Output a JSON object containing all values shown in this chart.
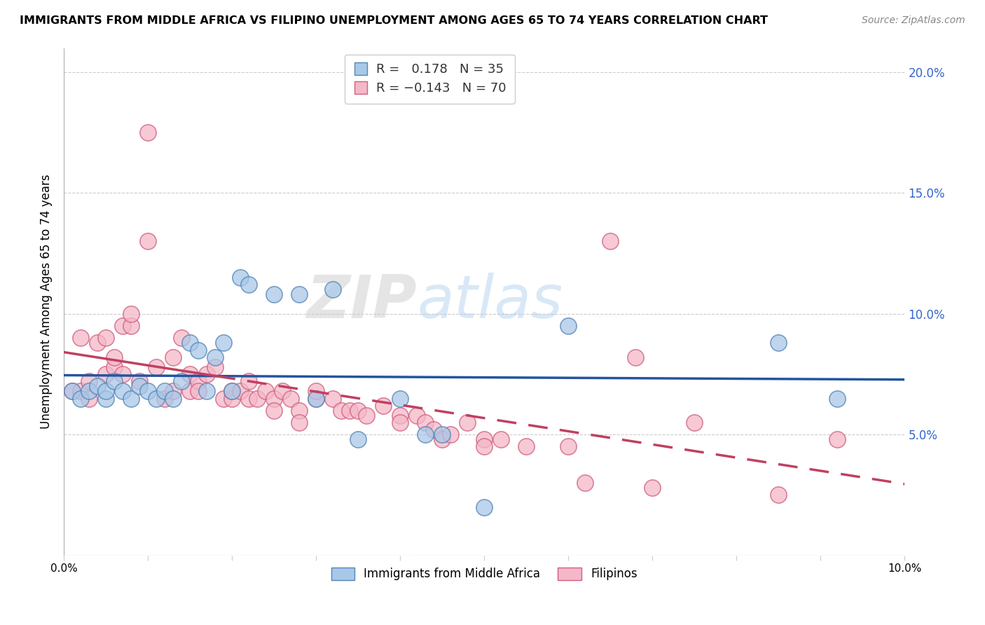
{
  "title": "IMMIGRANTS FROM MIDDLE AFRICA VS FILIPINO UNEMPLOYMENT AMONG AGES 65 TO 74 YEARS CORRELATION CHART",
  "source": "Source: ZipAtlas.com",
  "ylabel": "Unemployment Among Ages 65 to 74 years",
  "legend_labels": [
    "Immigrants from Middle Africa",
    "Filipinos"
  ],
  "blue_R": "0.178",
  "blue_N": "35",
  "pink_R": "-0.143",
  "pink_N": "70",
  "blue_color": "#a8c8e8",
  "pink_color": "#f4b8c8",
  "blue_edge_color": "#5585b5",
  "pink_edge_color": "#d06080",
  "blue_line_color": "#2255a0",
  "pink_line_color": "#c04060",
  "watermark": "ZIPatlas",
  "blue_points": [
    [
      0.001,
      0.068
    ],
    [
      0.002,
      0.065
    ],
    [
      0.003,
      0.068
    ],
    [
      0.004,
      0.07
    ],
    [
      0.005,
      0.065
    ],
    [
      0.005,
      0.068
    ],
    [
      0.006,
      0.072
    ],
    [
      0.007,
      0.068
    ],
    [
      0.008,
      0.065
    ],
    [
      0.009,
      0.07
    ],
    [
      0.01,
      0.068
    ],
    [
      0.011,
      0.065
    ],
    [
      0.012,
      0.068
    ],
    [
      0.013,
      0.065
    ],
    [
      0.014,
      0.072
    ],
    [
      0.015,
      0.088
    ],
    [
      0.016,
      0.085
    ],
    [
      0.017,
      0.068
    ],
    [
      0.018,
      0.082
    ],
    [
      0.019,
      0.088
    ],
    [
      0.02,
      0.068
    ],
    [
      0.021,
      0.115
    ],
    [
      0.022,
      0.112
    ],
    [
      0.025,
      0.108
    ],
    [
      0.028,
      0.108
    ],
    [
      0.03,
      0.065
    ],
    [
      0.032,
      0.11
    ],
    [
      0.035,
      0.048
    ],
    [
      0.04,
      0.065
    ],
    [
      0.043,
      0.05
    ],
    [
      0.045,
      0.05
    ],
    [
      0.05,
      0.02
    ],
    [
      0.06,
      0.095
    ],
    [
      0.085,
      0.088
    ],
    [
      0.092,
      0.065
    ]
  ],
  "pink_points": [
    [
      0.001,
      0.068
    ],
    [
      0.002,
      0.068
    ],
    [
      0.002,
      0.09
    ],
    [
      0.003,
      0.072
    ],
    [
      0.003,
      0.065
    ],
    [
      0.004,
      0.088
    ],
    [
      0.005,
      0.09
    ],
    [
      0.005,
      0.075
    ],
    [
      0.006,
      0.078
    ],
    [
      0.006,
      0.082
    ],
    [
      0.007,
      0.095
    ],
    [
      0.007,
      0.075
    ],
    [
      0.008,
      0.095
    ],
    [
      0.008,
      0.1
    ],
    [
      0.009,
      0.072
    ],
    [
      0.01,
      0.13
    ],
    [
      0.01,
      0.175
    ],
    [
      0.011,
      0.078
    ],
    [
      0.012,
      0.065
    ],
    [
      0.013,
      0.082
    ],
    [
      0.013,
      0.068
    ],
    [
      0.014,
      0.09
    ],
    [
      0.015,
      0.075
    ],
    [
      0.015,
      0.068
    ],
    [
      0.016,
      0.072
    ],
    [
      0.016,
      0.068
    ],
    [
      0.017,
      0.075
    ],
    [
      0.018,
      0.078
    ],
    [
      0.019,
      0.065
    ],
    [
      0.02,
      0.065
    ],
    [
      0.02,
      0.068
    ],
    [
      0.021,
      0.068
    ],
    [
      0.022,
      0.065
    ],
    [
      0.022,
      0.072
    ],
    [
      0.023,
      0.065
    ],
    [
      0.024,
      0.068
    ],
    [
      0.025,
      0.065
    ],
    [
      0.025,
      0.06
    ],
    [
      0.026,
      0.068
    ],
    [
      0.027,
      0.065
    ],
    [
      0.028,
      0.06
    ],
    [
      0.028,
      0.055
    ],
    [
      0.03,
      0.065
    ],
    [
      0.03,
      0.068
    ],
    [
      0.032,
      0.065
    ],
    [
      0.033,
      0.06
    ],
    [
      0.034,
      0.06
    ],
    [
      0.035,
      0.06
    ],
    [
      0.036,
      0.058
    ],
    [
      0.038,
      0.062
    ],
    [
      0.04,
      0.058
    ],
    [
      0.04,
      0.055
    ],
    [
      0.042,
      0.058
    ],
    [
      0.043,
      0.055
    ],
    [
      0.044,
      0.052
    ],
    [
      0.045,
      0.048
    ],
    [
      0.046,
      0.05
    ],
    [
      0.048,
      0.055
    ],
    [
      0.05,
      0.048
    ],
    [
      0.05,
      0.045
    ],
    [
      0.052,
      0.048
    ],
    [
      0.055,
      0.045
    ],
    [
      0.06,
      0.045
    ],
    [
      0.062,
      0.03
    ],
    [
      0.065,
      0.13
    ],
    [
      0.068,
      0.082
    ],
    [
      0.07,
      0.028
    ],
    [
      0.075,
      0.055
    ],
    [
      0.085,
      0.025
    ],
    [
      0.092,
      0.048
    ]
  ],
  "xlim": [
    0,
    0.1
  ],
  "ylim": [
    0,
    0.21
  ],
  "yticks": [
    0.0,
    0.05,
    0.1,
    0.15,
    0.2
  ],
  "ytick_labels_right": [
    "",
    "5.0%",
    "10.0%",
    "15.0%",
    "20.0%"
  ],
  "xticks": [
    0.0,
    0.01,
    0.02,
    0.03,
    0.04,
    0.05,
    0.06,
    0.07,
    0.08,
    0.09,
    0.1
  ],
  "xtick_labels": [
    "0.0%",
    "",
    "",
    "",
    "",
    "",
    "",
    "",
    "",
    "",
    "10.0%"
  ]
}
